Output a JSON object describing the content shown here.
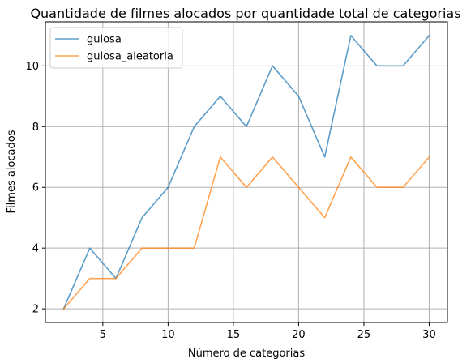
{
  "chart_data": {
    "type": "line",
    "title": "Quantidade de filmes alocados por quantidade total de categorias",
    "xlabel": "Número de categorias",
    "ylabel": "Filmes alocados",
    "x": [
      2,
      4,
      6,
      8,
      10,
      12,
      14,
      16,
      18,
      20,
      22,
      24,
      26,
      28,
      30
    ],
    "series": [
      {
        "name": "gulosa",
        "color": "#1f77b4",
        "values": [
          2,
          4,
          3,
          5,
          6,
          8,
          9,
          8,
          10,
          9,
          7,
          11,
          10,
          10,
          11
        ]
      },
      {
        "name": "gulosa_aleatoria",
        "color": "#ff7f0e",
        "values": [
          2,
          3,
          3,
          4,
          4,
          4,
          7,
          6,
          7,
          6,
          5,
          7,
          6,
          6,
          7
        ]
      }
    ],
    "xlim": [
      0.6,
      31.4
    ],
    "ylim": [
      1.55,
      11.45
    ],
    "xticks": [
      "5",
      "10",
      "15",
      "20",
      "25",
      "30"
    ],
    "xtick_values": [
      5,
      10,
      15,
      20,
      25,
      30
    ],
    "yticks": [
      "2",
      "4",
      "6",
      "8",
      "10"
    ],
    "ytick_values": [
      2,
      4,
      6,
      8,
      10
    ],
    "grid": true,
    "legend_position": "top-left"
  }
}
